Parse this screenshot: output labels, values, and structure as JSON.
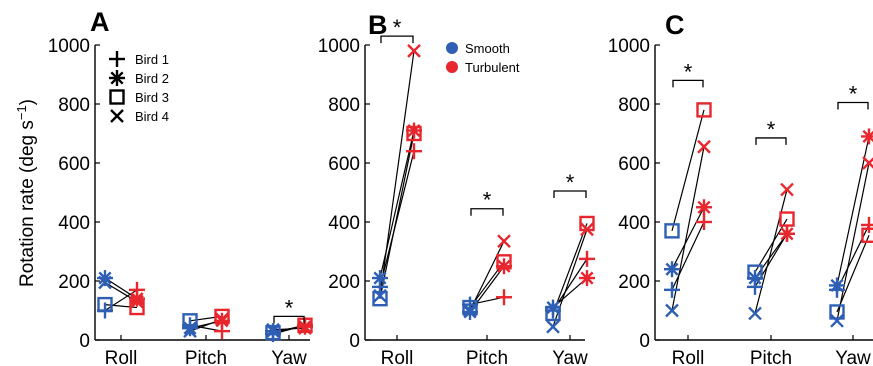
{
  "colors": {
    "smooth": "#2e5fb4",
    "turbulent": "#e8262e",
    "line": "#000000"
  },
  "ylabel_base": "Rotation rate (deg s",
  "ylabel_sup": "−1",
  "ylabel_close": ")",
  "legend_birds": [
    {
      "label": "Bird 1",
      "marker": "plus"
    },
    {
      "label": "Bird 2",
      "marker": "asterisk"
    },
    {
      "label": "Bird 3",
      "marker": "square"
    },
    {
      "label": "Bird 4",
      "marker": "cross"
    }
  ],
  "legend_conditions": [
    {
      "label": "Smooth",
      "key": "smooth"
    },
    {
      "label": "Turbulent",
      "key": "turbulent"
    }
  ],
  "chart_data": [
    {
      "type": "scatter",
      "panel_label": "A",
      "categories": [
        "Roll",
        "Pitch",
        "Yaw"
      ],
      "ylim": [
        0,
        1000
      ],
      "yticks": [
        0,
        200,
        400,
        600,
        800,
        1000
      ],
      "series": [
        {
          "name": "Bird 1",
          "marker": "plus",
          "smooth": [
            100,
            50,
            20
          ],
          "turbulent": [
            170,
            30,
            50
          ]
        },
        {
          "name": "Bird 2",
          "marker": "asterisk",
          "smooth": [
            210,
            40,
            30
          ],
          "turbulent": [
            140,
            65,
            45
          ]
        },
        {
          "name": "Bird 3",
          "marker": "square",
          "smooth": [
            120,
            65,
            25
          ],
          "turbulent": [
            110,
            80,
            50
          ]
        },
        {
          "name": "Bird 4",
          "marker": "cross",
          "smooth": [
            195,
            30,
            35
          ],
          "turbulent": [
            130,
            70,
            40
          ]
        }
      ],
      "significance": [
        {
          "category": "Yaw",
          "label": "*",
          "y": 80
        }
      ]
    },
    {
      "type": "scatter",
      "panel_label": "B",
      "categories": [
        "Roll",
        "Pitch",
        "Yaw"
      ],
      "ylim": [
        0,
        1000
      ],
      "yticks": [
        0,
        200,
        400,
        600,
        800,
        1000
      ],
      "series": [
        {
          "name": "Bird 1",
          "marker": "plus",
          "smooth": [
            180,
            120,
            100
          ],
          "turbulent": [
            640,
            145,
            275
          ]
        },
        {
          "name": "Bird 2",
          "marker": "asterisk",
          "smooth": [
            210,
            95,
            110
          ],
          "turbulent": [
            710,
            250,
            210
          ]
        },
        {
          "name": "Bird 3",
          "marker": "square",
          "smooth": [
            140,
            110,
            90
          ],
          "turbulent": [
            700,
            265,
            395
          ]
        },
        {
          "name": "Bird 4",
          "marker": "cross",
          "smooth": [
            150,
            100,
            45
          ],
          "turbulent": [
            980,
            335,
            375
          ]
        }
      ],
      "significance": [
        {
          "category": "Roll",
          "label": "*",
          "y": 1030
        },
        {
          "category": "Pitch",
          "label": "*",
          "y": 445
        },
        {
          "category": "Yaw",
          "label": "*",
          "y": 505
        }
      ]
    },
    {
      "type": "scatter",
      "panel_label": "C",
      "categories": [
        "Roll",
        "Pitch",
        "Yaw"
      ],
      "ylim": [
        0,
        1000
      ],
      "yticks": [
        0,
        200,
        400,
        600,
        800,
        1000
      ],
      "series": [
        {
          "name": "Bird 1",
          "marker": "plus",
          "smooth": [
            170,
            180,
            170
          ],
          "turbulent": [
            400,
            360,
            390
          ]
        },
        {
          "name": "Bird 2",
          "marker": "asterisk",
          "smooth": [
            240,
            210,
            185
          ],
          "turbulent": [
            450,
            360,
            690
          ]
        },
        {
          "name": "Bird 3",
          "marker": "square",
          "smooth": [
            370,
            230,
            95
          ],
          "turbulent": [
            780,
            410,
            355
          ]
        },
        {
          "name": "Bird 4",
          "marker": "cross",
          "smooth": [
            100,
            90,
            65
          ],
          "turbulent": [
            655,
            510,
            600
          ]
        }
      ],
      "significance": [
        {
          "category": "Roll",
          "label": "*",
          "y": 880
        },
        {
          "category": "Pitch",
          "label": "*",
          "y": 685
        },
        {
          "category": "Yaw",
          "label": "*",
          "y": 805
        }
      ]
    }
  ]
}
